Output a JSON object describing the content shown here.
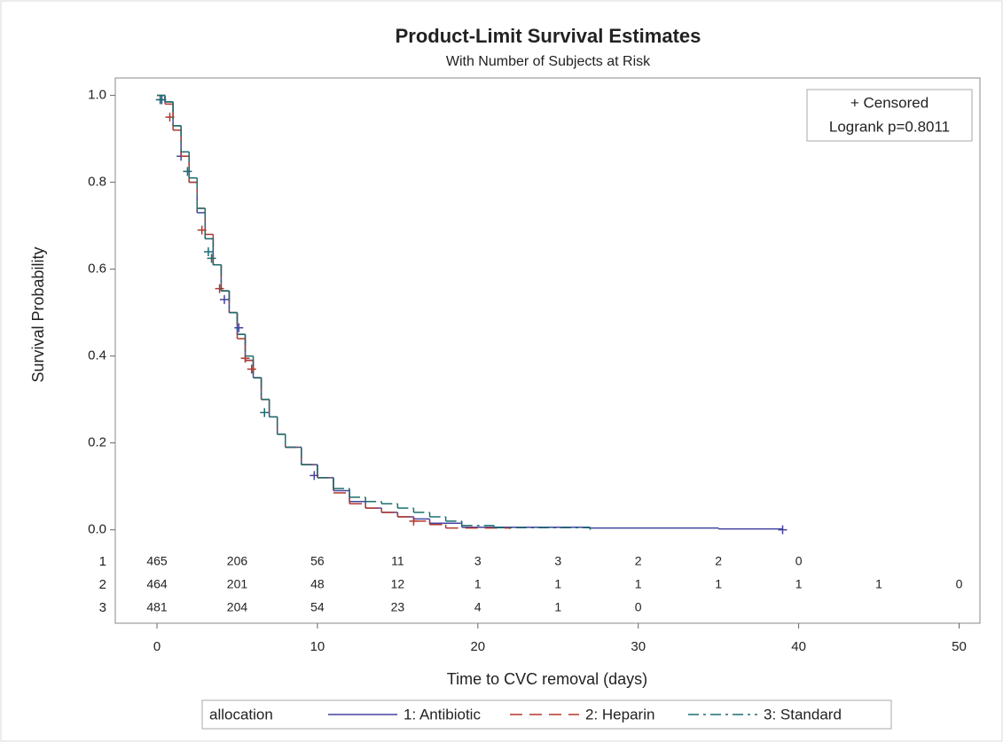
{
  "chart_data": {
    "type": "step",
    "title": "Product-Limit Survival Estimates",
    "subtitle": "With Number of Subjects at Risk",
    "x_label": "Time to CVC removal (days)",
    "y_label": "Survival Probability",
    "xlim": [
      -2.6,
      51.3
    ],
    "ylim": [
      -0.215,
      1.04
    ],
    "xticks": [
      0,
      10,
      20,
      30,
      40,
      50
    ],
    "yticks": [
      {
        "value": 0,
        "label": "0.0"
      },
      {
        "value": 0.2,
        "label": "0.2"
      },
      {
        "value": 0.4,
        "label": "0.4"
      },
      {
        "value": 0.6,
        "label": "0.6"
      },
      {
        "value": 0.8,
        "label": "0.8"
      },
      {
        "value": 1,
        "label": "1.0"
      }
    ],
    "annotations": [
      "+ Censored",
      "Logrank p=0.8011"
    ],
    "legend_title": "allocation",
    "series": [
      {
        "name": "1: Antibiotic",
        "color": "#4343a0",
        "dash": "none",
        "x": [
          0,
          0.5,
          1,
          1.5,
          2,
          2.5,
          3,
          3.5,
          4,
          4.5,
          5,
          5.5,
          6,
          6.5,
          7,
          7.5,
          8,
          9,
          10,
          11,
          12,
          13,
          14,
          15,
          16,
          17,
          19,
          27,
          35,
          39
        ],
        "values": [
          1,
          0.985,
          0.93,
          0.86,
          0.8,
          0.73,
          0.67,
          0.61,
          0.55,
          0.5,
          0.45,
          0.39,
          0.35,
          0.3,
          0.26,
          0.22,
          0.19,
          0.15,
          0.12,
          0.09,
          0.065,
          0.05,
          0.04,
          0.03,
          0.025,
          0.015,
          0.006,
          0.004,
          0.002,
          0
        ],
        "censored_x": [
          0.3,
          1.5,
          4.2,
          5.1,
          9.8,
          39
        ],
        "censored_values": [
          0.99,
          0.86,
          0.53,
          0.465,
          0.125,
          0
        ]
      },
      {
        "name": "2: Heparin",
        "color": "#b3372c",
        "dash": "14 8",
        "x": [
          0,
          0.5,
          1,
          1.5,
          2,
          2.5,
          3,
          3.5,
          4,
          4.5,
          5,
          5.5,
          6,
          6.5,
          7,
          7.5,
          8,
          9,
          10,
          11,
          12,
          13,
          14,
          15,
          16,
          17,
          18,
          22
        ],
        "values": [
          1,
          0.98,
          0.92,
          0.86,
          0.8,
          0.74,
          0.68,
          0.61,
          0.55,
          0.5,
          0.44,
          0.39,
          0.35,
          0.3,
          0.26,
          0.22,
          0.19,
          0.15,
          0.12,
          0.085,
          0.06,
          0.05,
          0.04,
          0.03,
          0.02,
          0.012,
          0.004,
          0.002
        ],
        "censored_x": [
          0.8,
          2.8,
          3.9,
          5.5,
          5.9,
          16
        ],
        "censored_values": [
          0.95,
          0.69,
          0.555,
          0.395,
          0.37,
          0.02
        ]
      },
      {
        "name": "3: Standard",
        "color": "#1b6e6e",
        "dash": "12 5 3 5",
        "x": [
          0,
          0.5,
          1,
          1.5,
          2,
          2.5,
          3,
          3.5,
          4,
          4.5,
          5,
          5.5,
          6,
          6.5,
          7,
          7.5,
          8,
          9,
          10,
          11,
          12,
          13,
          14,
          15,
          16,
          17,
          18,
          19,
          21,
          27
        ],
        "values": [
          1,
          0.985,
          0.93,
          0.87,
          0.81,
          0.74,
          0.67,
          0.61,
          0.55,
          0.5,
          0.45,
          0.4,
          0.35,
          0.3,
          0.26,
          0.22,
          0.19,
          0.15,
          0.12,
          0.095,
          0.075,
          0.065,
          0.06,
          0.05,
          0.04,
          0.03,
          0.02,
          0.01,
          0.005,
          0
        ],
        "censored_x": [
          0.2,
          1.9,
          3.2,
          3.4,
          6.7
        ],
        "censored_values": [
          0.99,
          0.825,
          0.64,
          0.625,
          0.27
        ]
      }
    ],
    "risk_times": [
      0,
      5,
      10,
      15,
      20,
      25,
      30,
      35,
      40,
      45,
      50
    ],
    "risk_table": [
      {
        "label": "1",
        "values": [
          465,
          206,
          56,
          11,
          3,
          3,
          2,
          2,
          0,
          null,
          null
        ]
      },
      {
        "label": "2",
        "values": [
          464,
          201,
          48,
          12,
          1,
          1,
          1,
          1,
          1,
          1,
          0
        ]
      },
      {
        "label": "3",
        "values": [
          481,
          204,
          54,
          23,
          4,
          1,
          0,
          null,
          null,
          null,
          null
        ]
      }
    ]
  }
}
